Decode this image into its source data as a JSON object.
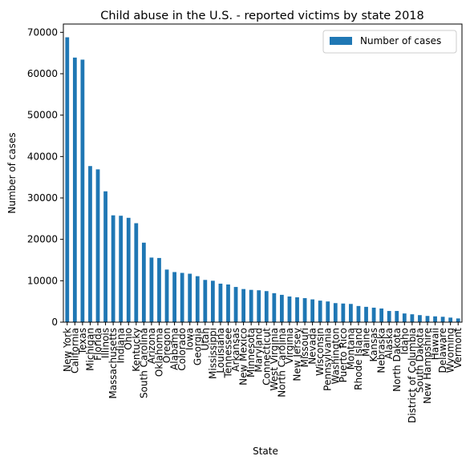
{
  "chart_data": {
    "type": "bar",
    "title": "Child abuse in the U.S. - reported victims by state 2018",
    "xlabel": "State",
    "ylabel": "Number of cases",
    "ylim": [
      0,
      72000
    ],
    "yticks": [
      0,
      10000,
      20000,
      30000,
      40000,
      50000,
      60000,
      70000
    ],
    "grid": false,
    "legend_position": "top-right",
    "categories": [
      "New York",
      "California",
      "Texas",
      "Michigan",
      "Florida",
      "Illinois",
      "Massachusetts",
      "Indiana",
      "Ohio",
      "Kentucky",
      "South Carolina",
      "Arizona",
      "Oklahoma",
      "Oregon",
      "Alabama",
      "Colorado",
      "Iowa",
      "Georgia",
      "Utah",
      "Mississippi",
      "Louisiana",
      "Tennessee",
      "Arkansas",
      "New Mexico",
      "Minnesota",
      "Maryland",
      "Connecticut",
      "West Virginia",
      "North Carolina",
      "Virginia",
      "New Jersey",
      "Missouri",
      "Nevada",
      "Wisconsin",
      "Pennsylvania",
      "Washington",
      "Puerto Rico",
      "Montana",
      "Rhode Island",
      "Maine",
      "Kansas",
      "Nebraska",
      "Alaska",
      "North Dakota",
      "Idaho",
      "District of Columbia",
      "South Dakota",
      "New Hampshire",
      "Hawaii",
      "Delaware",
      "Wyoming",
      "Vermont"
    ],
    "series": [
      {
        "name": "Number of cases",
        "color": "#1f77b4",
        "values": [
          68800,
          63900,
          63400,
          37700,
          36900,
          31600,
          25800,
          25700,
          25200,
          23900,
          19200,
          15600,
          15500,
          12700,
          12100,
          11900,
          11700,
          11100,
          10200,
          10000,
          9300,
          9100,
          8500,
          8000,
          7800,
          7700,
          7500,
          7000,
          6600,
          6200,
          6000,
          5800,
          5500,
          5200,
          5000,
          4600,
          4500,
          4400,
          3900,
          3700,
          3500,
          3300,
          2700,
          2700,
          2100,
          1900,
          1700,
          1500,
          1400,
          1300,
          1100,
          900
        ]
      }
    ]
  }
}
